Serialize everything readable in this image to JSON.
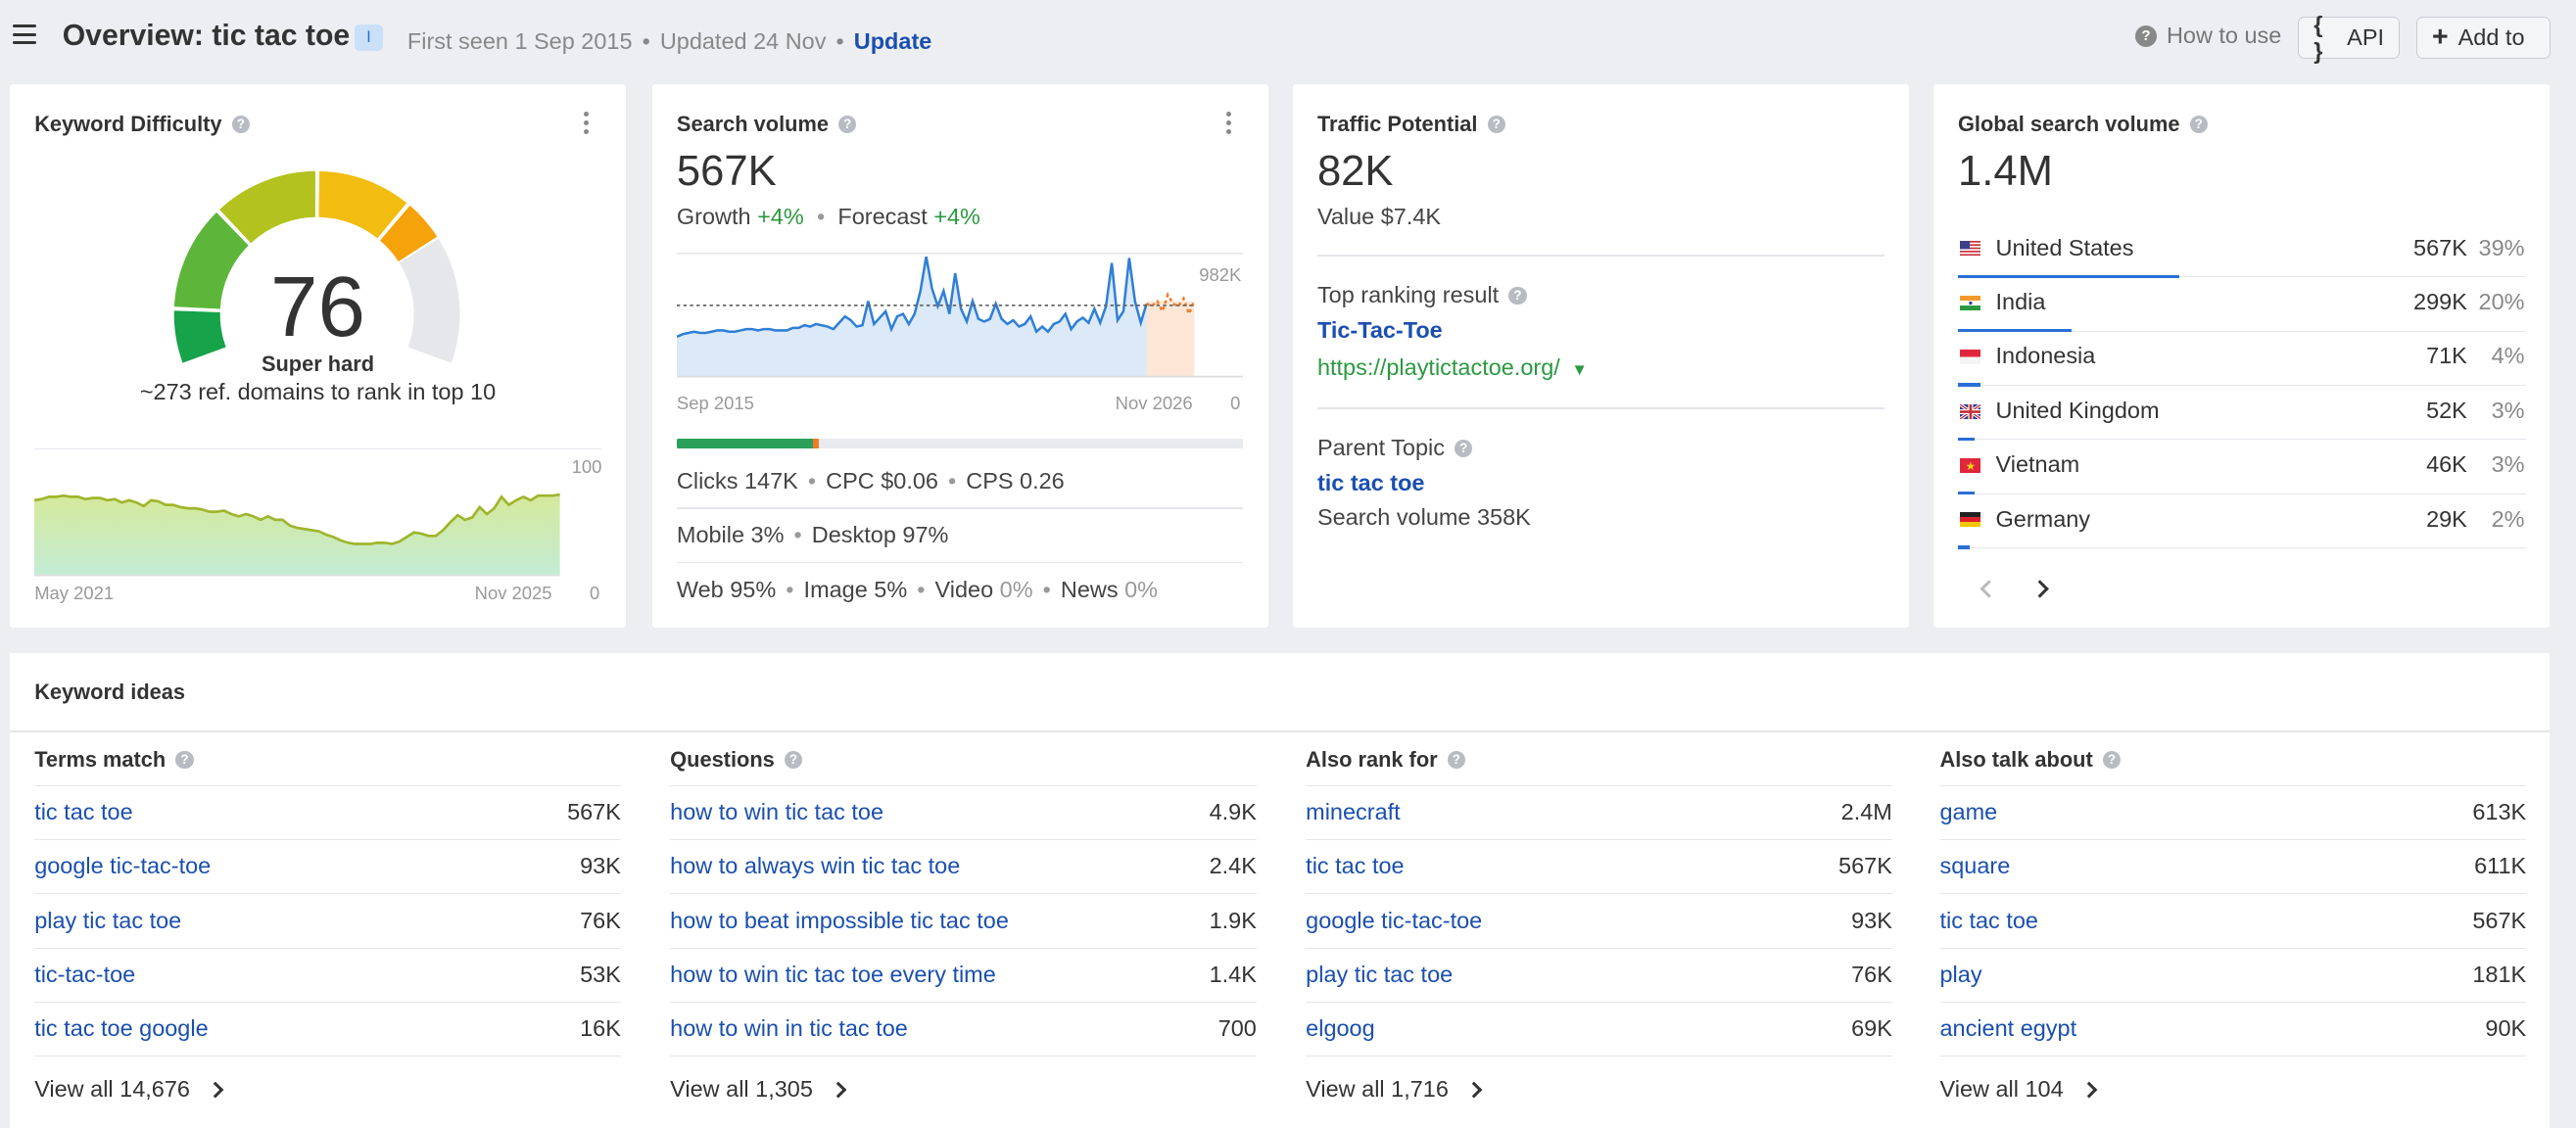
{
  "header": {
    "title": "Overview: tic tac toe",
    "badge": "I",
    "first_seen": "First seen 1 Sep 2015",
    "updated": "Updated 24 Nov",
    "update_link": "Update",
    "how_to_use": "How to use",
    "api_label": "API",
    "add_label": "Add to"
  },
  "kd": {
    "title": "Keyword Difficulty",
    "value": "76",
    "label": "Super hard",
    "sub": "~273 ref. domains to rank in top 10",
    "gauge_fraction": 0.76,
    "x_start": "May 2021",
    "x_end": "Nov 2025",
    "y_max": "100",
    "y_min": "0",
    "trend": [
      66,
      67,
      69,
      69,
      70,
      69,
      69,
      67,
      68,
      68,
      66,
      67,
      64,
      66,
      64,
      61,
      66,
      65,
      62,
      62,
      60,
      59,
      59,
      58,
      56,
      56,
      57,
      54,
      52,
      54,
      52,
      49,
      52,
      49,
      49,
      44,
      42,
      41,
      40,
      39,
      36,
      34,
      31,
      29,
      28,
      28,
      28,
      29,
      29,
      28,
      30,
      34,
      38,
      37,
      35,
      35,
      40,
      47,
      53,
      49,
      51,
      60,
      54,
      59,
      69,
      62,
      66,
      69,
      66,
      70,
      70,
      70,
      71
    ]
  },
  "sv": {
    "title": "Search volume",
    "value": "567K",
    "growth_label": "Growth",
    "growth_value": "+4%",
    "forecast_label": "Forecast",
    "forecast_value": "+4%",
    "y_max": "982K",
    "y_min": "0",
    "x_start": "Sep 2015",
    "x_end": "Nov 2026",
    "clicks": "Clicks 147K",
    "cpc": "CPC $0.06",
    "cps": "CPS 0.26",
    "mobile": "Mobile 3%",
    "desktop": "Desktop 97%",
    "web": "Web 95%",
    "image": "Image 5%",
    "video_label": "Video",
    "video_value": "0%",
    "news_label": "News",
    "news_value": "0%",
    "clicks_organic_fraction": 0.24,
    "clicks_paid_fraction": 0.01,
    "trend": [
      320,
      340,
      350,
      360,
      350,
      350,
      360,
      370,
      370,
      360,
      360,
      370,
      380,
      380,
      370,
      380,
      380,
      370,
      370,
      370,
      390,
      390,
      410,
      400,
      420,
      410,
      400,
      380,
      430,
      480,
      450,
      400,
      410,
      600,
      420,
      470,
      520,
      380,
      480,
      500,
      420,
      500,
      680,
      950,
      700,
      560,
      680,
      500,
      820,
      540,
      440,
      600,
      460,
      440,
      460,
      580,
      460,
      420,
      450,
      400,
      420,
      480,
      360,
      400,
      360,
      420,
      440,
      500,
      380,
      440,
      470,
      430,
      540,
      430,
      560,
      900,
      450,
      520,
      940,
      600,
      430,
      580
    ],
    "forecast": [
      560,
      600,
      520,
      650,
      580,
      560,
      620,
      500,
      600
    ]
  },
  "tp": {
    "title": "Traffic Potential",
    "value": "82K",
    "value_label": "Value $7.4K",
    "top_ranking_label": "Top ranking result",
    "top_ranking_title": "Tic-Tac-Toe",
    "top_ranking_url": "https://playtictactoe.org/",
    "parent_label": "Parent Topic",
    "parent_value": "tic tac toe",
    "parent_sv": "Search volume 358K"
  },
  "gsv": {
    "title": "Global search volume",
    "value": "1.4M",
    "countries": [
      {
        "name": "United States",
        "volume": "567K",
        "pct": "39%",
        "share": 0.39
      },
      {
        "name": "India",
        "volume": "299K",
        "pct": "20%",
        "share": 0.2
      },
      {
        "name": "Indonesia",
        "volume": "71K",
        "pct": "4%",
        "share": 0.04
      },
      {
        "name": "United Kingdom",
        "volume": "52K",
        "pct": "3%",
        "share": 0.03
      },
      {
        "name": "Vietnam",
        "volume": "46K",
        "pct": "3%",
        "share": 0.03
      },
      {
        "name": "Germany",
        "volume": "29K",
        "pct": "2%",
        "share": 0.02
      }
    ]
  },
  "ideas": {
    "title": "Keyword ideas",
    "columns": [
      {
        "title": "Terms match",
        "rows": [
          {
            "kw": "tic tac toe",
            "vol": "567K"
          },
          {
            "kw": "google tic-tac-toe",
            "vol": "93K"
          },
          {
            "kw": "play tic tac toe",
            "vol": "76K"
          },
          {
            "kw": "tic-tac-toe",
            "vol": "53K"
          },
          {
            "kw": "tic tac toe google",
            "vol": "16K"
          }
        ],
        "view_all": "View all 14,676"
      },
      {
        "title": "Questions",
        "rows": [
          {
            "kw": "how to win tic tac toe",
            "vol": "4.9K"
          },
          {
            "kw": "how to always win tic tac toe",
            "vol": "2.4K"
          },
          {
            "kw": "how to beat impossible tic tac toe",
            "vol": "1.9K"
          },
          {
            "kw": "how to win tic tac toe every time",
            "vol": "1.4K"
          },
          {
            "kw": "how to win in tic tac toe",
            "vol": "700"
          }
        ],
        "view_all": "View all 1,305"
      },
      {
        "title": "Also rank for",
        "rows": [
          {
            "kw": "minecraft",
            "vol": "2.4M"
          },
          {
            "kw": "tic tac toe",
            "vol": "567K"
          },
          {
            "kw": "google tic-tac-toe",
            "vol": "93K"
          },
          {
            "kw": "play tic tac toe",
            "vol": "76K"
          },
          {
            "kw": "elgoog",
            "vol": "69K"
          }
        ],
        "view_all": "View all 1,716"
      },
      {
        "title": "Also talk about",
        "rows": [
          {
            "kw": "game",
            "vol": "613K"
          },
          {
            "kw": "square",
            "vol": "611K"
          },
          {
            "kw": "tic tac toe",
            "vol": "567K"
          },
          {
            "kw": "play",
            "vol": "181K"
          },
          {
            "kw": "ancient egypt",
            "vol": "90K"
          }
        ],
        "view_all": "View all 104"
      }
    ]
  }
}
